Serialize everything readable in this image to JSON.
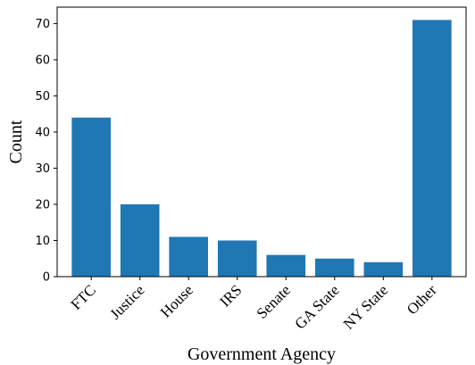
{
  "chart_data": {
    "type": "bar",
    "categories": [
      "FTC",
      "Justice",
      "House",
      "IRS",
      "Senate",
      "GA State",
      "NY State",
      "Other"
    ],
    "values": [
      44,
      20,
      11,
      10,
      6,
      5,
      4,
      71
    ],
    "title": "",
    "xlabel": "Government Agency",
    "ylabel": "Count",
    "ylim": [
      0,
      74.55
    ],
    "yticks": [
      0,
      10,
      20,
      30,
      40,
      50,
      60,
      70
    ],
    "grid": false,
    "bar_color": "#1f77b4"
  }
}
